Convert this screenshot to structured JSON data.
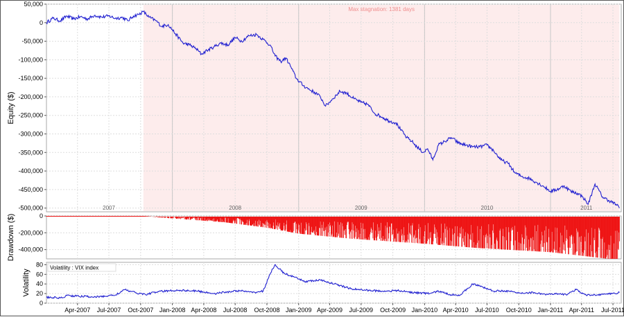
{
  "chart_data": [
    {
      "type": "line",
      "ylabel": "Equity ($)",
      "ylim": [
        -510000,
        50000
      ],
      "y_ticks": [
        "50,000",
        "0",
        "-50,000",
        "-100,000",
        "-150,000",
        "-200,000",
        "-250,000",
        "-300,000",
        "-350,000",
        "-400,000",
        "-450,000",
        "-500,000"
      ],
      "y_tick_values": [
        50000,
        0,
        -50000,
        -100000,
        -150000,
        -200000,
        -250000,
        -300000,
        -350000,
        -400000,
        -450000,
        -500000
      ],
      "year_labels": [
        "2007",
        "2008",
        "2009",
        "2010",
        "2011"
      ],
      "stagnation_label": "Max stagnation: 1381 days",
      "stagnation_start": "2007-10-09",
      "stagnation_end": "2011-07-20",
      "grid": true,
      "color": "#1f1fd0",
      "shade_color": "#fdecec",
      "series": [
        {
          "x": [
            "2007-01-01",
            "2007-01-20",
            "2007-02-10",
            "2007-03-01",
            "2007-03-20",
            "2007-04-10",
            "2007-05-01",
            "2007-05-20",
            "2007-06-10",
            "2007-07-01",
            "2007-07-20",
            "2007-08-10",
            "2007-08-25",
            "2007-09-10",
            "2007-09-25",
            "2007-10-09",
            "2007-10-25",
            "2007-11-15",
            "2007-12-01",
            "2007-12-20",
            "2008-01-10",
            "2008-02-01",
            "2008-02-20",
            "2008-03-10",
            "2008-03-25",
            "2008-04-10",
            "2008-05-01",
            "2008-05-20",
            "2008-06-10",
            "2008-07-01",
            "2008-07-20",
            "2008-08-10",
            "2008-09-01",
            "2008-09-20",
            "2008-10-10",
            "2008-10-25",
            "2008-11-10",
            "2008-11-25",
            "2008-12-10",
            "2008-12-25",
            "2009-01-15",
            "2009-02-01",
            "2009-02-20",
            "2009-03-05",
            "2009-03-20",
            "2009-04-10",
            "2009-05-01",
            "2009-05-20",
            "2009-06-10",
            "2009-07-01",
            "2009-07-20",
            "2009-08-10",
            "2009-09-01",
            "2009-09-20",
            "2009-10-10",
            "2009-10-25",
            "2009-11-10",
            "2009-11-25",
            "2009-12-10",
            "2009-12-28",
            "2010-01-10",
            "2010-01-25",
            "2010-02-10",
            "2010-03-01",
            "2010-03-20",
            "2010-04-10",
            "2010-05-01",
            "2010-05-20",
            "2010-06-10",
            "2010-07-01",
            "2010-07-20",
            "2010-08-10",
            "2010-09-01",
            "2010-09-20",
            "2010-10-10",
            "2010-11-01",
            "2010-11-20",
            "2010-12-10",
            "2011-01-01",
            "2011-01-20",
            "2011-02-10",
            "2011-03-01",
            "2011-03-20",
            "2011-04-05",
            "2011-04-20",
            "2011-05-10",
            "2011-06-01",
            "2011-06-20",
            "2011-07-10",
            "2011-07-20"
          ],
          "values": [
            0,
            12000,
            5000,
            18000,
            10000,
            16000,
            10000,
            20000,
            15000,
            18000,
            12000,
            14000,
            5000,
            18000,
            22000,
            30000,
            15000,
            5000,
            -10000,
            -5000,
            -30000,
            -55000,
            -60000,
            -70000,
            -85000,
            -75000,
            -65000,
            -55000,
            -60000,
            -40000,
            -50000,
            -35000,
            -32000,
            -45000,
            -60000,
            -90000,
            -105000,
            -95000,
            -120000,
            -150000,
            -170000,
            -180000,
            -190000,
            -200000,
            -225000,
            -205000,
            -185000,
            -190000,
            -205000,
            -215000,
            -220000,
            -245000,
            -255000,
            -265000,
            -270000,
            -290000,
            -310000,
            -320000,
            -335000,
            -350000,
            -340000,
            -370000,
            -330000,
            -320000,
            -310000,
            -325000,
            -330000,
            -335000,
            -335000,
            -330000,
            -345000,
            -370000,
            -380000,
            -405000,
            -415000,
            -420000,
            -430000,
            -440000,
            -455000,
            -450000,
            -440000,
            -455000,
            -460000,
            -470000,
            -490000,
            -435000,
            -470000,
            -480000,
            -490000,
            -500000
          ]
        }
      ]
    },
    {
      "type": "bar",
      "ylabel": "Drawdown ($)",
      "ylim": [
        -510000,
        0
      ],
      "y_ticks": [
        "0",
        "-200,000",
        "-400,000"
      ],
      "y_tick_values": [
        0,
        -200000,
        -400000
      ],
      "color": "#ee1111",
      "series": [
        {
          "x": [
            "2007-01-01",
            "2007-10-09",
            "2008-01-01",
            "2008-06-01",
            "2008-10-01",
            "2009-01-01",
            "2009-06-01",
            "2010-01-01",
            "2010-06-01",
            "2011-01-01",
            "2011-07-20"
          ],
          "values": [
            0,
            0,
            -30000,
            -75000,
            -140000,
            -210000,
            -270000,
            -330000,
            -380000,
            -430000,
            -525000
          ]
        }
      ]
    },
    {
      "type": "line",
      "ylabel": "Volatility",
      "ylim": [
        0,
        85
      ],
      "y_ticks": [
        "0",
        "20",
        "40",
        "60",
        "80"
      ],
      "y_tick_values": [
        0,
        20,
        40,
        60,
        80
      ],
      "legend": "Volatility : VIX index",
      "color": "#1f1fd0",
      "x_ticks": [
        "Apr-2007",
        "Jul-2007",
        "Oct-2007",
        "Jan-2008",
        "Apr-2008",
        "Jul-2008",
        "Oct-2008",
        "Jan-2009",
        "Apr-2009",
        "Jul-2009",
        "Oct-2009",
        "Jan-2010",
        "Apr-2010",
        "Jul-2010",
        "Oct-2010",
        "Jan-2011",
        "Apr-2011",
        "Jul-2011"
      ],
      "x_tick_dates": [
        "2007-04-01",
        "2007-07-01",
        "2007-10-01",
        "2008-01-01",
        "2008-04-01",
        "2008-07-01",
        "2008-10-01",
        "2009-01-01",
        "2009-04-01",
        "2009-07-01",
        "2009-10-01",
        "2010-01-01",
        "2010-04-01",
        "2010-07-01",
        "2010-10-01",
        "2011-01-01",
        "2011-04-01",
        "2011-07-01"
      ],
      "series": [
        {
          "name": "Volatility : VIX index",
          "x": [
            "2007-01-01",
            "2007-02-15",
            "2007-03-01",
            "2007-04-15",
            "2007-06-01",
            "2007-07-20",
            "2007-08-15",
            "2007-09-15",
            "2007-10-15",
            "2007-11-20",
            "2008-01-20",
            "2008-03-15",
            "2008-05-01",
            "2008-06-15",
            "2008-07-15",
            "2008-08-20",
            "2008-09-20",
            "2008-10-10",
            "2008-10-24",
            "2008-11-20",
            "2008-12-15",
            "2009-01-20",
            "2009-03-05",
            "2009-04-15",
            "2009-06-01",
            "2009-07-15",
            "2009-09-01",
            "2009-10-15",
            "2009-12-01",
            "2010-01-15",
            "2010-02-10",
            "2010-03-15",
            "2010-04-15",
            "2010-05-20",
            "2010-06-20",
            "2010-07-20",
            "2010-08-20",
            "2010-10-01",
            "2010-11-15",
            "2010-12-20",
            "2011-01-15",
            "2011-02-15",
            "2011-03-16",
            "2011-04-15",
            "2011-05-20",
            "2011-06-20",
            "2011-07-20"
          ],
          "values": [
            12,
            11,
            16,
            14,
            13,
            17,
            28,
            22,
            18,
            24,
            27,
            25,
            20,
            24,
            26,
            22,
            25,
            60,
            80,
            62,
            55,
            45,
            48,
            40,
            30,
            27,
            25,
            26,
            22,
            20,
            25,
            18,
            17,
            40,
            33,
            25,
            26,
            21,
            22,
            18,
            19,
            18,
            28,
            16,
            18,
            19,
            22
          ]
        }
      ]
    }
  ]
}
